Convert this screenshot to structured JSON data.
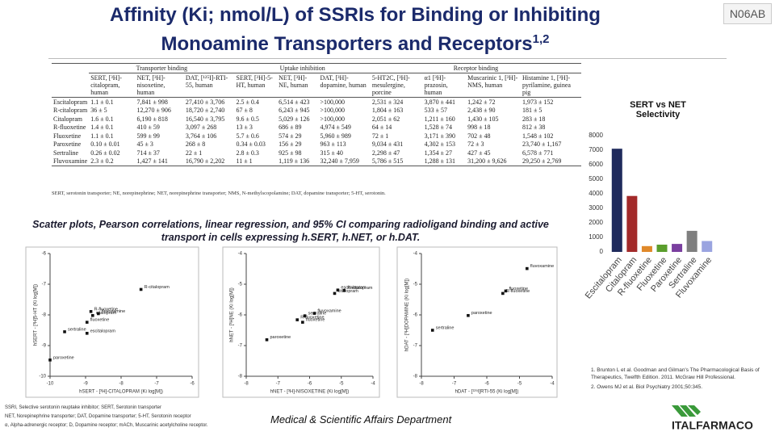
{
  "header": {
    "title_line1": "Affinity (Ki; nmol/L) of SSRIs for Binding or Inhibiting",
    "title_line2": "Monoamine Transporters and Receptors",
    "title_superscript": "1,2",
    "code": "N06AB"
  },
  "table": {
    "groups": [
      "Transporter binding",
      "Uptake inhibition",
      "Receptor binding"
    ],
    "columns": [
      "SERT, [³H]-citalopram, human",
      "NET, [³H]-nisoxetine, human",
      "DAT, [¹²⁵I]-RTI-55, human",
      "SERT, [³H]-5-HT, human",
      "NET, [³H]-NE, human",
      "DAT, [³H]-dopamine, human",
      "5-HT2C, [³H]-mesulergine, porcine",
      "α1 [³H]-prazosin, human",
      "Muscarinic 1, [³H]-NMS, human",
      "Histamine 1, [³H]-pyrilamine, guinea pig"
    ],
    "rows": [
      {
        "drug": "Escitalopram",
        "cells": [
          "1.1 ± 0.1",
          "7,841 ± 998",
          "27,410 ± 3,706",
          "2.5 ± 0.4",
          "6,514 ± 423",
          ">100,000",
          "2,531 ± 324",
          "3,870 ± 441",
          "1,242 ± 72",
          "1,973 ± 152"
        ]
      },
      {
        "drug": "R-citalopram",
        "cells": [
          "36 ± 5",
          "12,270 ± 906",
          "18,720 ± 2,740",
          "67 ± 8",
          "6,243 ± 945",
          ">100,000",
          "1,804 ± 163",
          "533 ± 57",
          "2,438 ± 90",
          "181 ± 5"
        ]
      },
      {
        "drug": "Citalopram",
        "cells": [
          "1.6 ± 0.1",
          "6,190 ± 818",
          "16,540 ± 3,795",
          "9.6 ± 0.5",
          "5,029 ± 126",
          ">100,000",
          "2,051 ± 62",
          "1,211 ± 160",
          "1,430 ± 105",
          "283 ± 18"
        ]
      },
      {
        "drug": "R-fluoxetine",
        "cells": [
          "1.4 ± 0.1",
          "410 ± 59",
          "3,097 ± 268",
          "13 ± 3",
          "686 ± 89",
          "4,974 ± 549",
          "64 ± 14",
          "1,528 ± 74",
          "998 ± 18",
          "812 ± 38"
        ]
      },
      {
        "drug": "Fluoxetine",
        "cells": [
          "1.1 ± 0.1",
          "599 ± 99",
          "3,764 ± 106",
          "5.7 ± 0.6",
          "574 ± 29",
          "5,960 ± 989",
          "72 ± 1",
          "3,171 ± 390",
          "702 ± 48",
          "1,548 ± 102"
        ]
      },
      {
        "drug": "Paroxetine",
        "cells": [
          "0.10 ± 0.01",
          "45 ± 3",
          "268 ± 8",
          "0.34 ± 0.03",
          "156 ± 29",
          "963 ± 113",
          "9,034 ± 431",
          "4,302 ± 153",
          "72 ± 3",
          "23,740 ± 1,167"
        ]
      },
      {
        "drug": "Sertraline",
        "cells": [
          "0.26 ± 0.02",
          "714 ± 37",
          "22 ± 1",
          "2.8 ± 0.3",
          "925 ± 98",
          "315 ± 40",
          "2,298 ± 47",
          "1,354 ± 27",
          "427 ± 45",
          "6,578 ± 771"
        ]
      },
      {
        "drug": "Fluvoxamine",
        "cells": [
          "2.3 ± 0.2",
          "1,427 ± 141",
          "16,790 ± 2,202",
          "11 ± 1",
          "1,119 ± 136",
          "32,240 ± 7,959",
          "5,786 ± 515",
          "1,288 ± 131",
          "31,200 ± 9,626",
          "29,250 ± 2,769"
        ]
      }
    ],
    "footnote": "SERT, serotonin transporter; NE, norepinephrine; NET, norepinephrine transporter; NMS, N-methylscopolamine; DAT, dopamine transporter; 5-HT, serotonin."
  },
  "scatter_heading": "Scatter plots, Pearson correlations, linear regression, and 95% CI comparing radioligand binding and active transport in cells expressing h.SERT, h.NET, or h.DAT.",
  "chart_data": [
    {
      "type": "bar",
      "title": "SERT vs NET Selectivity",
      "categories": [
        "Escitalopram",
        "Citalopram",
        "R-fluoxetine",
        "Fluoxetine",
        "Paroxetine",
        "Sertraline",
        "Fluvoxamine"
      ],
      "values": [
        7100,
        3850,
        400,
        500,
        550,
        1450,
        750
      ],
      "colors": [
        "#1f2a5c",
        "#a32a2a",
        "#e0892a",
        "#5a9e2c",
        "#7a3f9f",
        "#7f7f7f",
        "#9aa4e0"
      ],
      "ylim": [
        0,
        8000
      ],
      "yticks": [
        0,
        1000,
        2000,
        3000,
        4000,
        5000,
        6000,
        7000,
        8000
      ],
      "grid": false
    },
    {
      "type": "scatter",
      "x_label": "hSERT - [³H]-CITALOPRAM (Ki log[M])",
      "y_label": "hSERT - [³H]5-HT (Ki log[M])",
      "xlim": [
        -10,
        -6
      ],
      "ylim": [
        -10,
        -6
      ],
      "xticks": [
        -10,
        -9,
        -8,
        -7,
        -6
      ],
      "yticks": [
        -10,
        -9,
        -8,
        -7,
        -6
      ],
      "labels": [
        "escitalopram",
        "R-citalopram",
        "citalopram",
        "R-fluoxetine",
        "fluoxetine",
        "paroxetine",
        "sertraline",
        "fluvoxamine"
      ],
      "x": [
        -8.96,
        -7.44,
        -8.8,
        -8.85,
        -8.96,
        -10.0,
        -9.59,
        -8.64
      ],
      "series": [
        {
          "color": "#111111",
          "values": [
            -8.6,
            -7.17,
            -8.02,
            -7.89,
            -8.24,
            -9.47,
            -8.55,
            -7.96
          ]
        }
      ]
    },
    {
      "type": "scatter",
      "x_label": "hNET - [³H]-NISOXETINE (Ki log[M])",
      "y_label": "hNET - [³H]NE (Ki log[M])",
      "xlim": [
        -8,
        -4
      ],
      "ylim": [
        -8,
        -4
      ],
      "xticks": [
        -8,
        -7,
        -6,
        -5,
        -4
      ],
      "yticks": [
        -8,
        -7,
        -6,
        -5,
        -4
      ],
      "labels": [
        "escitalopram",
        "R-citalopram",
        "citalopram",
        "R-fluoxetine",
        "fluoxetine",
        "paroxetine",
        "sertraline",
        "fluvoxamine"
      ],
      "x": [
        -5.11,
        -4.91,
        -5.21,
        -6.39,
        -6.22,
        -7.35,
        -6.15,
        -5.85
      ],
      "series": [
        {
          "color": "#111111",
          "values": [
            -5.19,
            -5.2,
            -5.3,
            -6.16,
            -6.24,
            -6.81,
            -6.03,
            -5.95
          ]
        }
      ]
    },
    {
      "type": "scatter",
      "x_label": "hDAT - [¹²⁵I]RTI-55 (Ki log[M])",
      "y_label": "hDAT - [³H]DOPAMINE (Ki log[M])",
      "xlim": [
        -8,
        -4
      ],
      "ylim": [
        -8,
        -4
      ],
      "xticks": [
        -8,
        -7,
        -6,
        -5,
        -4
      ],
      "yticks": [
        -8,
        -7,
        -6,
        -5,
        -4
      ],
      "labels": [
        "R-fluoxetine",
        "fluoxetine",
        "paroxetine",
        "sertraline",
        "fluvoxamine"
      ],
      "x": [
        -5.51,
        -5.42,
        -6.57,
        -7.66,
        -4.77
      ],
      "series": [
        {
          "color": "#111111",
          "values": [
            -5.3,
            -5.22,
            -6.02,
            -6.5,
            -4.49
          ]
        }
      ]
    }
  ],
  "references": [
    "1. Brunton L et al. Goodman and Gilman's The Pharmacological Basis of Therapeutics, Twelfth Edition. 2011. McGraw Hill Professional.",
    "2. Owens MJ et al. Biol Psychiatry 2001;50:345."
  ],
  "abbreviations": [
    "SSRI, Selective serotonin reuptake inhibitor; SERT, Serotonin transporter",
    "NET, Norepinephrine transporter; DAT, Dopamine transporter; 5-HT, Serotonin receptor",
    "α, Alpha-adrenergic receptor; D, Dopamine receptor; mACh, Muscarinic acetylcholine receptor."
  ],
  "department": "Medical & Scientific Affairs Department",
  "logo": "ITALFARMACO"
}
